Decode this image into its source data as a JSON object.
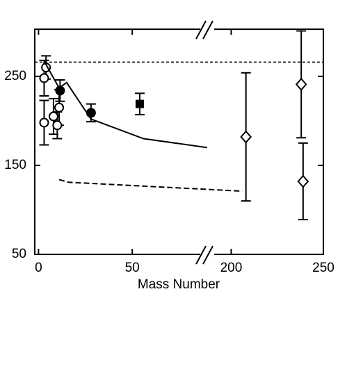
{
  "chart_data": {
    "type": "scatter",
    "x_label": "Mass Number",
    "x_segments": [
      {
        "xlim": [
          -2,
          90
        ],
        "xticks": [
          0,
          50
        ]
      },
      {
        "xlim": [
          187,
          250
        ],
        "xticks": [
          200,
          250
        ]
      }
    ],
    "ylim": [
      50,
      303
    ],
    "yticks": [
      50,
      150,
      250
    ],
    "reference_line": {
      "y": 266,
      "color": "#000000"
    },
    "series": [
      {
        "kind": "points",
        "marker": "open-circle",
        "color": "#000000",
        "x": [
          3,
          3,
          4,
          8,
          10,
          11
        ],
        "values": [
          248,
          198,
          260,
          205,
          195,
          215
        ],
        "errors": [
          20,
          25,
          13,
          20,
          15,
          20
        ]
      },
      {
        "kind": "points",
        "marker": "filled-circle",
        "color": "#000000",
        "x": [
          11.5,
          28
        ],
        "values": [
          234,
          209
        ],
        "errors": [
          12,
          10
        ]
      },
      {
        "kind": "points",
        "marker": "filled-square",
        "color": "#000000",
        "x": [
          54
        ],
        "values": [
          219
        ],
        "errors": [
          12
        ]
      },
      {
        "kind": "points",
        "marker": "open-diamond",
        "color": "#000000",
        "x": [
          208,
          238,
          239
        ],
        "values": [
          182,
          241,
          132
        ],
        "errors": [
          72,
          60,
          43
        ]
      },
      {
        "kind": "line",
        "dash": "solid",
        "color": "#000000",
        "x": [
          3,
          11,
          15,
          28,
          56,
          90
        ],
        "values": [
          267,
          237,
          243,
          202,
          180,
          170
        ]
      },
      {
        "kind": "line",
        "dash": "dashed",
        "color": "#000000",
        "x": [
          11,
          16,
          90,
          206
        ],
        "values": [
          134,
          131,
          123,
          121
        ]
      }
    ]
  }
}
